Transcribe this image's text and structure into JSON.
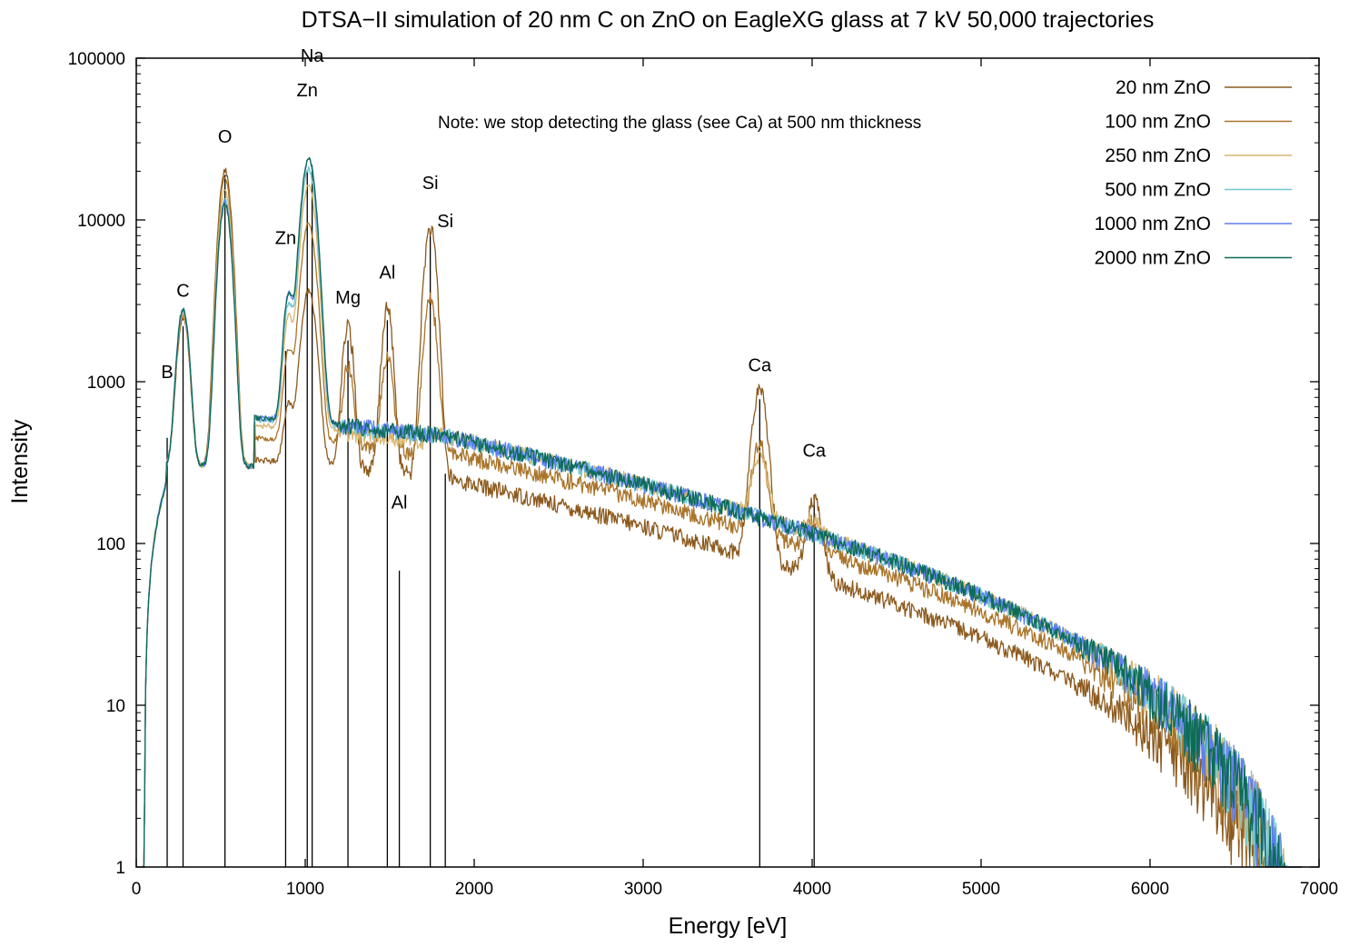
{
  "chart_data": {
    "type": "line",
    "title": "DTSA−II simulation of 20 nm C on ZnO on EagleXG glass at 7 kV 50,000 trajectories",
    "xlabel": "Energy [eV]",
    "ylabel": "Intensity",
    "xlim": [
      0,
      7000
    ],
    "ylim": [
      1,
      100000
    ],
    "y_scale": "log",
    "grid": false,
    "legend_position": "top-right",
    "x_ticks": [
      0,
      1000,
      2000,
      3000,
      4000,
      5000,
      6000,
      7000
    ],
    "x_tick_labels": [
      "0",
      "1000",
      "2000",
      "3000",
      "4000",
      "5000",
      "6000",
      "7000"
    ],
    "y_ticks": [
      1,
      10,
      100,
      1000,
      10000,
      100000
    ],
    "y_tick_labels": [
      "1",
      "10",
      "100",
      "1000",
      "10000",
      "100000"
    ],
    "note": "Note: we stop detecting the glass (see Ca) at 500 nm thickness",
    "series": [
      {
        "name": "20 nm ZnO",
        "color": "#8c5a1e"
      },
      {
        "name": "100 nm ZnO",
        "color": "#a9742a"
      },
      {
        "name": "250 nm ZnO",
        "color": "#d8b46e"
      },
      {
        "name": "500 nm ZnO",
        "color": "#72c8d0"
      },
      {
        "name": "1000 nm ZnO",
        "color": "#5d7ef0"
      },
      {
        "name": "2000 nm ZnO",
        "color": "#0e6b55"
      }
    ],
    "peak_lines": [
      {
        "energy": 183,
        "height": 450
      },
      {
        "energy": 277,
        "height": 2200
      },
      {
        "energy": 525,
        "height": 19000
      },
      {
        "energy": 884,
        "height": 1550
      },
      {
        "energy": 1012,
        "height": 20000
      },
      {
        "energy": 1041,
        "height": 20000
      },
      {
        "energy": 1253,
        "height": 1800
      },
      {
        "energy": 1486,
        "height": 2400
      },
      {
        "energy": 1557,
        "height": 68
      },
      {
        "energy": 1740,
        "height": 8000
      },
      {
        "energy": 1829,
        "height": 270
      },
      {
        "energy": 3690,
        "height": 780
      },
      {
        "energy": 4012,
        "height": 200
      }
    ],
    "peak_labels": [
      {
        "text": "B",
        "energy": 183,
        "intensity": 1050
      },
      {
        "text": "C",
        "energy": 277,
        "intensity": 3350
      },
      {
        "text": "O",
        "energy": 525,
        "intensity": 30000
      },
      {
        "text": "Na",
        "energy": 1041,
        "intensity": 95000
      },
      {
        "text": "Zn",
        "energy": 1012,
        "intensity": 58000
      },
      {
        "text": "Zn",
        "energy": 884,
        "intensity": 7100
      },
      {
        "text": "Mg",
        "energy": 1253,
        "intensity": 3050
      },
      {
        "text": "Al",
        "energy": 1486,
        "intensity": 4350
      },
      {
        "text": "Al",
        "energy": 1557,
        "intensity": 165
      },
      {
        "text": "Si",
        "energy": 1740,
        "intensity": 15500
      },
      {
        "text": "Si",
        "energy": 1829,
        "intensity": 9000
      },
      {
        "text": "Ca",
        "energy": 3690,
        "intensity": 1160
      },
      {
        "text": "Ca",
        "energy": 4012,
        "intensity": 345
      }
    ],
    "peak_heights_by_series": {
      "C": [
        2200,
        2300,
        2400,
        2500,
        2550,
        2550
      ],
      "O": [
        20000,
        18000,
        15000,
        13000,
        12500,
        12200
      ],
      "Zn_L": [
        3300,
        9000,
        16000,
        20000,
        23000,
        23500
      ],
      "Mg": [
        1900,
        820,
        0,
        0,
        0,
        0
      ],
      "Al": [
        2550,
        1050,
        0,
        0,
        0,
        0
      ],
      "Si": [
        8600,
        2900,
        0,
        0,
        0,
        0
      ],
      "Ca": [
        800,
        300,
        200,
        0,
        0,
        0
      ]
    }
  }
}
